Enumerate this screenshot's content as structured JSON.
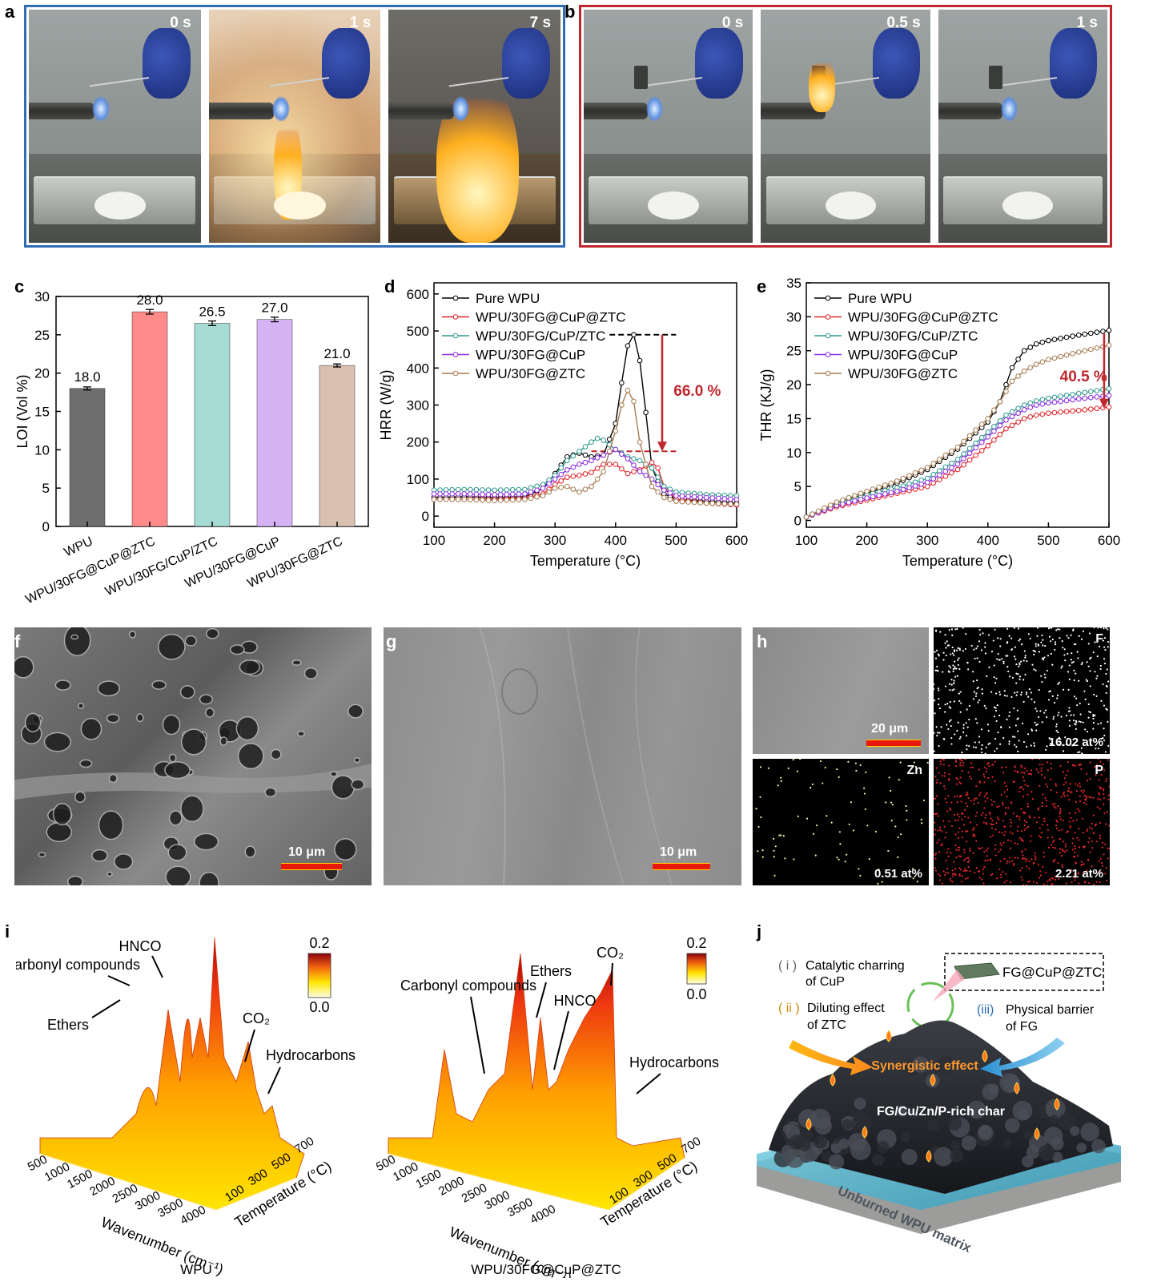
{
  "panels": {
    "a": {
      "label": "a",
      "times": [
        "0 s",
        "1 s",
        "7 s"
      ],
      "border_color": "#2f6db5"
    },
    "b": {
      "label": "b",
      "times": [
        "0 s",
        "0.5 s",
        "1 s"
      ],
      "border_color": "#c0272d"
    },
    "c": {
      "label": "c"
    },
    "d": {
      "label": "d"
    },
    "e": {
      "label": "e"
    },
    "f": {
      "label": "f",
      "scale": "10 μm"
    },
    "g": {
      "label": "g",
      "scale": "10 μm"
    },
    "h": {
      "label": "h",
      "scale": "20 μm",
      "maps": [
        {
          "element": "F",
          "value": "16.02 at%",
          "color": "#ffffff",
          "count": 520
        },
        {
          "element": "Zn",
          "value": "0.51 at%",
          "color": "#f4f2a0",
          "count": 90
        },
        {
          "element": "P",
          "value": "2.21 at%",
          "color": "#e0262b",
          "count": 700
        }
      ]
    },
    "i": {
      "label": "i",
      "left": {
        "caption": "WPU",
        "colorbar_max": "0.2",
        "colorbar_min": "0.0",
        "annotations": [
          "Carbonyl compounds",
          "HNCO",
          "Ethers",
          "CO₂",
          "Hydrocarbons"
        ],
        "x_axis": "Wavenumber (cm⁻¹)",
        "y_axis": "Temperature (°C)",
        "x_ticks": [
          "500",
          "1000",
          "1500",
          "2000",
          "2500",
          "3000",
          "3500",
          "4000"
        ],
        "y_ticks": [
          "100",
          "300",
          "500",
          "700"
        ]
      },
      "right": {
        "caption": "WPU/30FG@CuP@ZTC",
        "colorbar_max": "0.2",
        "colorbar_min": "0.0",
        "annotations": [
          "Carbonyl compounds",
          "Ethers",
          "CO₂",
          "HNCO",
          "Hydrocarbons"
        ],
        "x_axis": "Wavenumber (cm⁻¹)",
        "y_axis": "Temperature (°C)",
        "x_ticks": [
          "500",
          "1000",
          "1500",
          "2000",
          "2500",
          "3000",
          "3500",
          "4000"
        ],
        "y_ticks": [
          "100",
          "300",
          "500",
          "700"
        ]
      }
    },
    "j": {
      "label": "j",
      "legend": "FG@CuP@ZTC",
      "items": [
        {
          "num": "( i )",
          "text1": "Catalytic charring",
          "text2": "of CuP"
        },
        {
          "num": "( ii )",
          "text1": "Diluting effect",
          "text2": "of ZTC"
        },
        {
          "num": "(iii)",
          "text1": "Physical barrier",
          "text2": "of FG"
        }
      ],
      "synergy": "Synergistic effect",
      "char": "FG/Cu/Zn/P-rich char",
      "matrix": "Unburned WPU matrix"
    }
  },
  "chart_data": [
    {
      "id": "c",
      "type": "bar",
      "categories": [
        "WPU",
        "WPU/30FG@CuP@ZTC",
        "WPU/30FG/CuP/ZTC",
        "WPU/30FG@CuP",
        "WPU/30FG@ZTC"
      ],
      "values": [
        18.0,
        28.0,
        26.5,
        27.0,
        21.0
      ],
      "value_labels": [
        "18.0",
        "28.0",
        "26.5",
        "27.0",
        "21.0"
      ],
      "errors": [
        0.2,
        0.3,
        0.3,
        0.3,
        0.2
      ],
      "colors": [
        "#6e6e6e",
        "#ff8a8a",
        "#a6dbd4",
        "#d6b3f5",
        "#d9c0b0"
      ],
      "ylabel": "LOI (Vol %)",
      "ylim": [
        0,
        30
      ],
      "yticks": [
        "0",
        "5",
        "10",
        "15",
        "20",
        "25",
        "30"
      ]
    },
    {
      "id": "d",
      "type": "line",
      "xlabel": "Temperature (°C)",
      "ylabel": "HRR (W/g)",
      "xlim": [
        100,
        600
      ],
      "ylim": [
        -30,
        630
      ],
      "xticks": [
        "100",
        "200",
        "300",
        "400",
        "500",
        "600"
      ],
      "yticks": [
        "0",
        "100",
        "200",
        "300",
        "400",
        "500",
        "600"
      ],
      "annotation": "66.0 %",
      "annotation_color": "#c0272d",
      "ref_lines": [
        {
          "y": 490,
          "x1": 390,
          "x2": 500
        },
        {
          "y": 175,
          "x1": 360,
          "x2": 500
        }
      ],
      "series": [
        {
          "name": "Pure WPU",
          "color": "#000000",
          "x": [
            100,
            150,
            200,
            250,
            280,
            300,
            320,
            340,
            360,
            380,
            400,
            410,
            420,
            430,
            440,
            450,
            460,
            480,
            500,
            550,
            600
          ],
          "y": [
            50,
            52,
            50,
            52,
            75,
            115,
            160,
            170,
            160,
            165,
            250,
            360,
            460,
            490,
            420,
            280,
            130,
            60,
            45,
            40,
            35
          ]
        },
        {
          "name": "WPU/30FG@CuP@ZTC",
          "color": "#e0262b",
          "x": [
            100,
            150,
            200,
            250,
            280,
            300,
            320,
            340,
            360,
            380,
            400,
            420,
            440,
            460,
            470,
            480,
            500,
            550,
            600
          ],
          "y": [
            45,
            45,
            45,
            48,
            60,
            85,
            105,
            110,
            118,
            140,
            140,
            115,
            125,
            145,
            130,
            80,
            45,
            35,
            30
          ]
        },
        {
          "name": "WPU/30FG/CuP/ZTC",
          "color": "#2f9a8e",
          "x": [
            100,
            150,
            200,
            250,
            280,
            300,
            320,
            340,
            360,
            370,
            380,
            400,
            420,
            440,
            460,
            480,
            500,
            550,
            600
          ],
          "y": [
            70,
            72,
            70,
            72,
            85,
            110,
            150,
            175,
            200,
            210,
            205,
            180,
            160,
            150,
            130,
            80,
            65,
            58,
            55
          ]
        },
        {
          "name": "WPU/30FG@CuP",
          "color": "#8b2be2",
          "x": [
            100,
            150,
            200,
            250,
            280,
            300,
            320,
            340,
            360,
            380,
            400,
            420,
            440,
            460,
            480,
            500,
            550,
            600
          ],
          "y": [
            60,
            60,
            58,
            60,
            75,
            100,
            125,
            140,
            150,
            165,
            180,
            155,
            120,
            100,
            70,
            55,
            50,
            45
          ]
        },
        {
          "name": "WPU/30FG@ZTC",
          "color": "#a67c52",
          "x": [
            100,
            150,
            200,
            250,
            280,
            300,
            320,
            340,
            360,
            380,
            400,
            410,
            420,
            430,
            440,
            460,
            480,
            500,
            550,
            600
          ],
          "y": [
            45,
            45,
            42,
            45,
            55,
            75,
            80,
            65,
            80,
            120,
            230,
            300,
            340,
            310,
            200,
            80,
            50,
            40,
            35,
            32
          ]
        }
      ]
    },
    {
      "id": "e",
      "type": "line",
      "xlabel": "Temperature (°C)",
      "ylabel": "THR (KJ/g)",
      "xlim": [
        100,
        600
      ],
      "ylim": [
        -1,
        35
      ],
      "xticks": [
        "100",
        "200",
        "300",
        "400",
        "500",
        "600"
      ],
      "yticks": [
        "0",
        "5",
        "10",
        "15",
        "20",
        "25",
        "30",
        "35"
      ],
      "annotation": "40.5 %",
      "annotation_color": "#c0272d",
      "series": [
        {
          "name": "Pure WPU",
          "color": "#000000",
          "x": [
            100,
            150,
            200,
            250,
            300,
            350,
            400,
            420,
            440,
            460,
            480,
            500,
            550,
            600
          ],
          "y": [
            0.5,
            2.5,
            4.0,
            5.5,
            7.5,
            10.5,
            14.5,
            17.5,
            22.5,
            25.0,
            26.0,
            26.5,
            27.3,
            28.0
          ]
        },
        {
          "name": "WPU/30FG@CuP@ZTC",
          "color": "#e0262b",
          "x": [
            100,
            150,
            200,
            250,
            300,
            350,
            400,
            430,
            460,
            480,
            500,
            550,
            600
          ],
          "y": [
            0.5,
            2.0,
            3.0,
            4.0,
            5.0,
            7.5,
            11.0,
            13.5,
            15.0,
            15.5,
            15.8,
            16.2,
            16.7
          ]
        },
        {
          "name": "WPU/30FG/CuP/ZTC",
          "color": "#2f9a8e",
          "x": [
            100,
            150,
            200,
            250,
            300,
            350,
            400,
            430,
            460,
            480,
            500,
            550,
            600
          ],
          "y": [
            0.5,
            2.5,
            3.8,
            4.8,
            6.2,
            9.0,
            13.0,
            15.5,
            17.0,
            17.6,
            18.0,
            18.7,
            19.4
          ]
        },
        {
          "name": "WPU/30FG@CuP",
          "color": "#8b2be2",
          "x": [
            100,
            150,
            200,
            250,
            300,
            350,
            400,
            430,
            460,
            480,
            500,
            550,
            600
          ],
          "y": [
            0.5,
            2.2,
            3.3,
            4.3,
            5.6,
            8.3,
            12.3,
            14.8,
            16.3,
            17.0,
            17.3,
            17.9,
            18.4
          ]
        },
        {
          "name": "WPU/30FG@ZTC",
          "color": "#a67c52",
          "x": [
            100,
            150,
            200,
            250,
            300,
            350,
            400,
            420,
            440,
            460,
            480,
            500,
            550,
            600
          ],
          "y": [
            0.5,
            2.7,
            4.3,
            5.8,
            7.8,
            10.8,
            15.0,
            17.5,
            20.5,
            22.0,
            23.0,
            23.7,
            24.8,
            25.8
          ]
        }
      ]
    }
  ]
}
